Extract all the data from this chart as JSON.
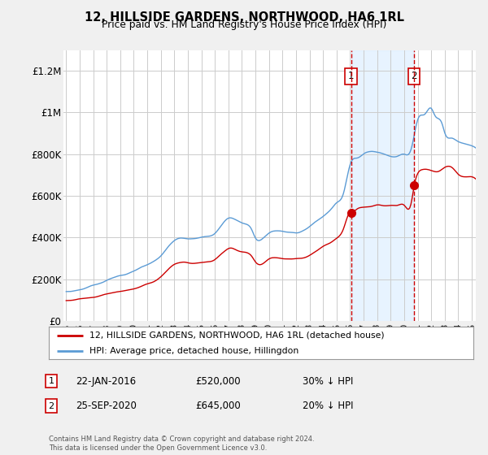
{
  "title": "12, HILLSIDE GARDENS, NORTHWOOD, HA6 1RL",
  "subtitle": "Price paid vs. HM Land Registry's House Price Index (HPI)",
  "ylabel_ticks": [
    "£0",
    "£200K",
    "£400K",
    "£600K",
    "£800K",
    "£1M",
    "£1.2M"
  ],
  "ytick_values": [
    0,
    200000,
    400000,
    600000,
    800000,
    1000000,
    1200000
  ],
  "ylim": [
    0,
    1300000
  ],
  "legend_line1": "12, HILLSIDE GARDENS, NORTHWOOD, HA6 1RL (detached house)",
  "legend_line2": "HPI: Average price, detached house, Hillingdon",
  "annotation1_label": "1",
  "annotation1_date": "22-JAN-2016",
  "annotation1_price": "£520,000",
  "annotation1_hpi": "30% ↓ HPI",
  "annotation2_label": "2",
  "annotation2_date": "25-SEP-2020",
  "annotation2_price": "£645,000",
  "annotation2_hpi": "20% ↓ HPI",
  "footnote": "Contains HM Land Registry data © Crown copyright and database right 2024.\nThis data is licensed under the Open Government Licence v3.0.",
  "hpi_color": "#5b9bd5",
  "hpi_fill_color": "#ddeeff",
  "price_color": "#cc0000",
  "vline_color": "#cc0000",
  "background_color": "#f0f0f0",
  "plot_bg_color": "#ffffff",
  "grid_color": "#cccccc",
  "sale1_year": 2016.07,
  "sale1_price": 520000,
  "sale2_year": 2020.73,
  "sale2_price": 645000,
  "xlim_start": 1994.8,
  "xlim_end": 2025.3
}
